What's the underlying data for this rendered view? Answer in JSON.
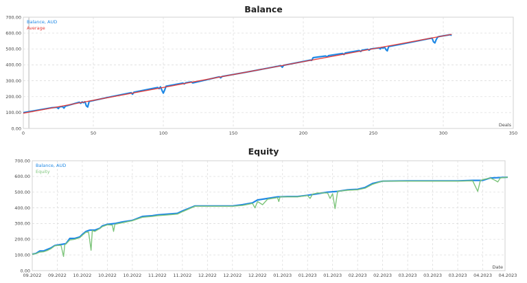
{
  "chart_data": [
    {
      "type": "line",
      "title": "Balance",
      "xlabel": "Deals",
      "ylabel": "",
      "xlim": [
        0,
        350
      ],
      "ylim": [
        0,
        700
      ],
      "grid": true,
      "legend_position": "top-left",
      "x_ticks": [
        "0",
        "50",
        "100",
        "150",
        "200",
        "250",
        "300",
        "350"
      ],
      "y_ticks": [
        "0.00",
        "100.00",
        "200.00",
        "300.00",
        "400.00",
        "500.00",
        "600.00",
        "700.00"
      ],
      "legend": [
        {
          "name": "Balance, AUD",
          "color": "#1e88e5"
        },
        {
          "name": "Average",
          "color": "#e53935"
        }
      ],
      "series": [
        {
          "name": "Balance, AUD",
          "color": "#1e88e5",
          "x": [
            0,
            10,
            20,
            24,
            25,
            26,
            28,
            29,
            30,
            40,
            41,
            42,
            43,
            44,
            45,
            46,
            47,
            60,
            77,
            78,
            79,
            96,
            97,
            98,
            99,
            100,
            101,
            102,
            114,
            115,
            116,
            120,
            121,
            140,
            141,
            142,
            160,
            184,
            185,
            186,
            205,
            206,
            207,
            210,
            216,
            217,
            218,
            228,
            229,
            230,
            240,
            241,
            242,
            246,
            247,
            248,
            254,
            255,
            256,
            257,
            258,
            259,
            260,
            261,
            270,
            290,
            292,
            293,
            294,
            295,
            296,
            297,
            305,
            306
          ],
          "values": [
            100,
            115,
            130,
            133,
            125,
            136,
            138,
            128,
            140,
            165,
            158,
            167,
            162,
            168,
            142,
            135,
            170,
            195,
            225,
            215,
            228,
            258,
            250,
            262,
            240,
            222,
            242,
            266,
            285,
            280,
            287,
            293,
            286,
            325,
            318,
            327,
            355,
            395,
            385,
            397,
            430,
            428,
            445,
            449,
            456,
            450,
            458,
            472,
            465,
            475,
            490,
            484,
            492,
            498,
            492,
            500,
            507,
            500,
            510,
            505,
            512,
            496,
            488,
            515,
            530,
            565,
            568,
            545,
            538,
            560,
            575,
            578,
            590,
            585
          ]
        },
        {
          "name": "Average",
          "color": "#e53935",
          "x": [
            0,
            306
          ],
          "values": [
            96,
            592
          ]
        }
      ]
    },
    {
      "type": "line",
      "title": "Equity",
      "xlabel": "Date",
      "ylabel": "",
      "ylim": [
        0,
        700
      ],
      "grid": true,
      "legend_position": "top-left",
      "x_ticks": [
        "09.2022",
        "09.2022",
        "10.2022",
        "10.2022",
        "10.2022",
        "11.2022",
        "11.2022",
        "12.2022",
        "12.2022",
        "12.2022",
        "01.2023",
        "01.2023",
        "01.2023",
        "02.2023",
        "02.2023",
        "03.2023",
        "03.2023",
        "03.2023",
        "04.2023",
        "04.2023"
      ],
      "y_ticks": [
        "0.00",
        "100.00",
        "200.00",
        "300.00",
        "400.00",
        "500.00",
        "600.00",
        "700.00"
      ],
      "legend": [
        {
          "name": "Balance, AUD",
          "color": "#1e88e5"
        },
        {
          "name": "Equity",
          "color": "#7cc47a"
        }
      ],
      "series": [
        {
          "name": "Balance, AUD",
          "color": "#1e88e5",
          "x": [
            0,
            0.15,
            0.3,
            0.45,
            0.6,
            0.75,
            0.9,
            1.0,
            1.2,
            1.35,
            1.5,
            1.7,
            1.9,
            2.0,
            2.15,
            2.3,
            2.5,
            2.7,
            2.8,
            3.0,
            3.3,
            3.6,
            4.0,
            4.4,
            4.8,
            5.0,
            5.4,
            5.8,
            6.0,
            6.5,
            7.0,
            7.5,
            8.0,
            8.4,
            8.8,
            9.0,
            9.4,
            9.8,
            10.2,
            10.6,
            11.0,
            11.4,
            11.8,
            12.2,
            12.6,
            13.0,
            13.3,
            13.6,
            14.0,
            15.0,
            16.0,
            17.0,
            17.6,
            18.0,
            18.3,
            18.6,
            19.0
          ],
          "values": [
            105,
            110,
            125,
            125,
            135,
            145,
            160,
            163,
            168,
            172,
            205,
            205,
            215,
            230,
            250,
            258,
            258,
            270,
            285,
            295,
            300,
            310,
            320,
            345,
            350,
            355,
            360,
            365,
            380,
            412,
            412,
            412,
            412,
            420,
            432,
            450,
            460,
            470,
            472,
            472,
            480,
            490,
            500,
            505,
            515,
            518,
            530,
            555,
            570,
            572,
            572,
            572,
            575,
            575,
            590,
            592,
            595
          ]
        },
        {
          "name": "Equity",
          "color": "#7cc47a",
          "x": [
            0,
            0.15,
            0.3,
            0.45,
            0.6,
            0.75,
            0.9,
            1.0,
            1.15,
            1.25,
            1.3,
            1.35,
            1.5,
            1.7,
            1.9,
            2.0,
            2.15,
            2.25,
            2.35,
            2.4,
            2.5,
            2.7,
            2.8,
            3.0,
            3.2,
            3.25,
            3.3,
            3.6,
            4.0,
            4.4,
            4.8,
            5.0,
            5.4,
            5.8,
            6.0,
            6.5,
            7.0,
            7.5,
            8.0,
            8.4,
            8.8,
            8.9,
            9.0,
            9.2,
            9.4,
            9.8,
            9.85,
            9.9,
            10.2,
            10.6,
            11.0,
            11.1,
            11.2,
            11.4,
            11.8,
            11.9,
            12.0,
            12.1,
            12.2,
            12.6,
            13.0,
            13.3,
            13.6,
            14.0,
            15.0,
            16.0,
            17.0,
            17.6,
            17.8,
            17.9,
            18.0,
            18.3,
            18.5,
            18.6,
            18.7,
            19.0
          ],
          "values": [
            105,
            108,
            118,
            120,
            128,
            140,
            158,
            160,
            162,
            90,
            165,
            170,
            195,
            200,
            210,
            225,
            245,
            245,
            130,
            255,
            250,
            268,
            280,
            292,
            290,
            250,
            295,
            305,
            318,
            340,
            345,
            350,
            355,
            360,
            375,
            410,
            410,
            410,
            410,
            415,
            428,
            400,
            440,
            420,
            455,
            465,
            440,
            470,
            470,
            470,
            478,
            460,
            488,
            495,
            495,
            460,
            490,
            395,
            505,
            512,
            515,
            525,
            550,
            570,
            570,
            570,
            570,
            572,
            505,
            572,
            580,
            590,
            575,
            565,
            590,
            595
          ]
        }
      ]
    }
  ]
}
